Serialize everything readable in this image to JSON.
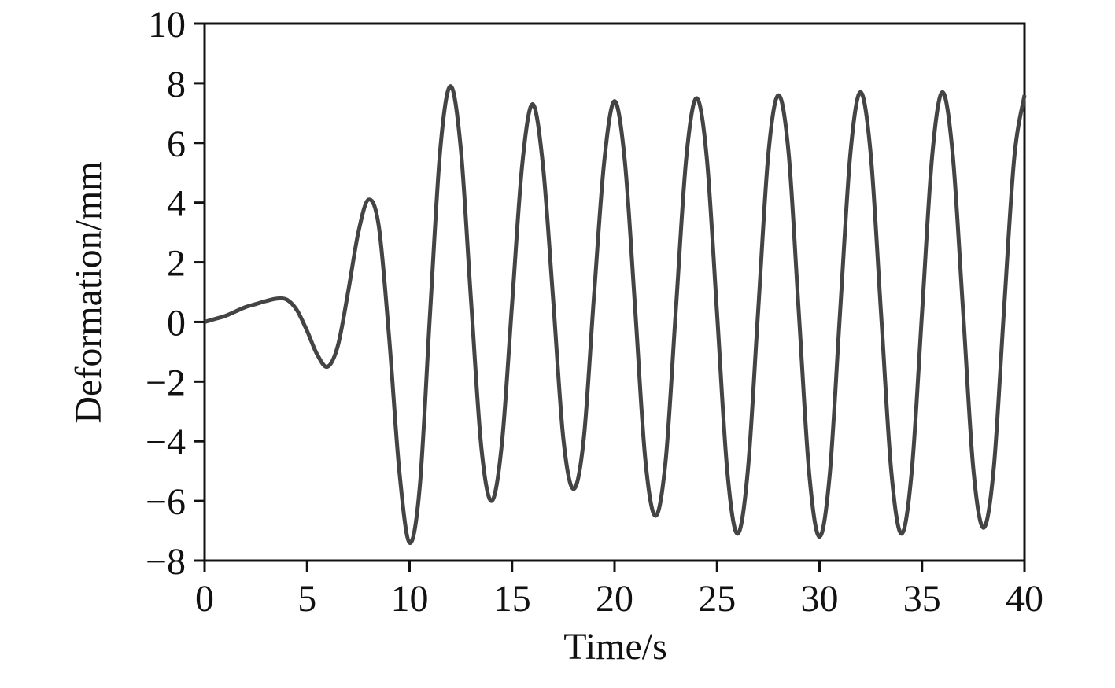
{
  "chart_data": {
    "type": "line",
    "xlabel": "Time/s",
    "ylabel": "Deformation/mm",
    "x": [
      0,
      0.5,
      1,
      1.5,
      2,
      2.5,
      3,
      3.5,
      4,
      4.5,
      5,
      5.5,
      6,
      6.5,
      7,
      7.5,
      8,
      8.5,
      9,
      9.5,
      10,
      10.5,
      11,
      11.5,
      12,
      12.5,
      13,
      13.5,
      14,
      14.5,
      15,
      15.5,
      16,
      16.5,
      17,
      17.5,
      18,
      18.5,
      19,
      19.5,
      20,
      20.5,
      21,
      21.5,
      22,
      22.5,
      23,
      23.5,
      24,
      24.5,
      25,
      25.5,
      26,
      26.5,
      27,
      27.5,
      28,
      28.5,
      29,
      29.5,
      30,
      30.5,
      31,
      31.5,
      32,
      32.5,
      33,
      33.5,
      34,
      34.5,
      35,
      35.5,
      36,
      36.5,
      37,
      37.5,
      38,
      38.5,
      39,
      39.5,
      40
    ],
    "values": [
      0,
      0.1,
      0.2,
      0.35,
      0.5,
      0.6,
      0.7,
      0.78,
      0.75,
      0.4,
      -0.3,
      -1.1,
      -1.5,
      -0.8,
      1.0,
      3.0,
      4.1,
      3.2,
      -0.5,
      -5.0,
      -7.4,
      -5.5,
      0.3,
      5.8,
      7.9,
      5.8,
      0.7,
      -4.2,
      -6.0,
      -4.1,
      0.6,
      5.3,
      7.3,
      5.3,
      0.8,
      -3.9,
      -5.6,
      -3.9,
      0.9,
      5.4,
      7.4,
      5.4,
      0.5,
      -4.6,
      -6.5,
      -4.6,
      0.5,
      5.5,
      7.5,
      5.5,
      0.3,
      -5.0,
      -7.1,
      -5.0,
      0.3,
      5.6,
      7.6,
      5.6,
      0.2,
      -5.1,
      -7.2,
      -5.1,
      0.3,
      5.6,
      7.7,
      5.6,
      0.3,
      -5.0,
      -7.1,
      -5.0,
      0.3,
      5.6,
      7.7,
      5.6,
      0.4,
      -4.9,
      -6.9,
      -4.9,
      0.4,
      5.5,
      7.6
    ],
    "color": "#444444",
    "xlim": [
      0,
      40
    ],
    "xticks": [
      0,
      5,
      10,
      15,
      20,
      25,
      30,
      35,
      40
    ],
    "ylim": [
      -8,
      10
    ],
    "yticks": [
      {
        "value": -8,
        "label": "−8"
      },
      {
        "value": -6,
        "label": "−6"
      },
      {
        "value": -4,
        "label": "−4"
      },
      {
        "value": -2,
        "label": "−2"
      },
      0,
      2,
      4,
      6,
      8,
      10
    ]
  }
}
